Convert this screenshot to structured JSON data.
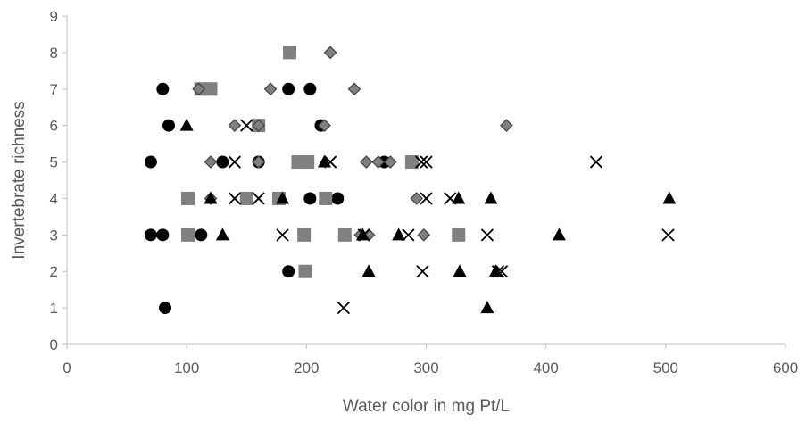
{
  "chart_data": {
    "type": "scatter",
    "title": "",
    "xlabel": "Water color in mg Pt/L",
    "ylabel": "Invertebrate richness",
    "xlim": [
      0,
      600
    ],
    "ylim": [
      0,
      9
    ],
    "xticks": [
      0,
      100,
      200,
      300,
      400,
      500,
      600
    ],
    "yticks": [
      0,
      1,
      2,
      3,
      4,
      5,
      6,
      7,
      8,
      9
    ],
    "grid": false,
    "legend": "none",
    "series": [
      {
        "marker": "circle",
        "color": "#000000",
        "points": [
          [
            80,
            7
          ],
          [
            185,
            7
          ],
          [
            203,
            7
          ],
          [
            85,
            6
          ],
          [
            212,
            6
          ],
          [
            70,
            5
          ],
          [
            130,
            5
          ],
          [
            160,
            5
          ],
          [
            265,
            5
          ],
          [
            203,
            4
          ],
          [
            226,
            4
          ],
          [
            70,
            3
          ],
          [
            80,
            3
          ],
          [
            112,
            3
          ],
          [
            185,
            2
          ],
          [
            82,
            1
          ]
        ]
      },
      {
        "marker": "square",
        "color": "#808080",
        "points": [
          [
            186,
            8
          ],
          [
            112,
            7
          ],
          [
            120,
            7
          ],
          [
            160,
            6
          ],
          [
            193,
            5
          ],
          [
            201,
            5
          ],
          [
            288,
            5
          ],
          [
            101,
            4
          ],
          [
            150,
            4
          ],
          [
            177,
            4
          ],
          [
            216,
            4
          ],
          [
            101,
            3
          ],
          [
            198,
            3
          ],
          [
            232,
            3
          ],
          [
            327,
            3
          ],
          [
            199,
            2
          ]
        ]
      },
      {
        "marker": "diamond",
        "color": "#808080",
        "points": [
          [
            220,
            8
          ],
          [
            110,
            7
          ],
          [
            170,
            7
          ],
          [
            240,
            7
          ],
          [
            140,
            6
          ],
          [
            160,
            6
          ],
          [
            215,
            6
          ],
          [
            367,
            6
          ],
          [
            120,
            5
          ],
          [
            160,
            5
          ],
          [
            250,
            5
          ],
          [
            260,
            5
          ],
          [
            270,
            5
          ],
          [
            120,
            4
          ],
          [
            292,
            4
          ],
          [
            245,
            3
          ],
          [
            252,
            3
          ],
          [
            298,
            3
          ]
        ]
      },
      {
        "marker": "triangle",
        "color": "#000000",
        "points": [
          [
            100,
            6
          ],
          [
            215,
            5
          ],
          [
            120,
            4
          ],
          [
            180,
            4
          ],
          [
            327,
            4
          ],
          [
            354,
            4
          ],
          [
            503,
            4
          ],
          [
            130,
            3
          ],
          [
            247,
            3
          ],
          [
            277,
            3
          ],
          [
            411,
            3
          ],
          [
            252,
            2
          ],
          [
            328,
            2
          ],
          [
            358,
            2
          ],
          [
            351,
            1
          ]
        ]
      },
      {
        "marker": "x",
        "color": "#000000",
        "points": [
          [
            150,
            6
          ],
          [
            140,
            5
          ],
          [
            220,
            5
          ],
          [
            296,
            5
          ],
          [
            300,
            5
          ],
          [
            442,
            5
          ],
          [
            140,
            4
          ],
          [
            160,
            4
          ],
          [
            300,
            4
          ],
          [
            320,
            4
          ],
          [
            180,
            3
          ],
          [
            248,
            3
          ],
          [
            285,
            3
          ],
          [
            351,
            3
          ],
          [
            502,
            3
          ],
          [
            297,
            2
          ],
          [
            360,
            2
          ],
          [
            363,
            2
          ],
          [
            231,
            1
          ]
        ]
      }
    ]
  }
}
